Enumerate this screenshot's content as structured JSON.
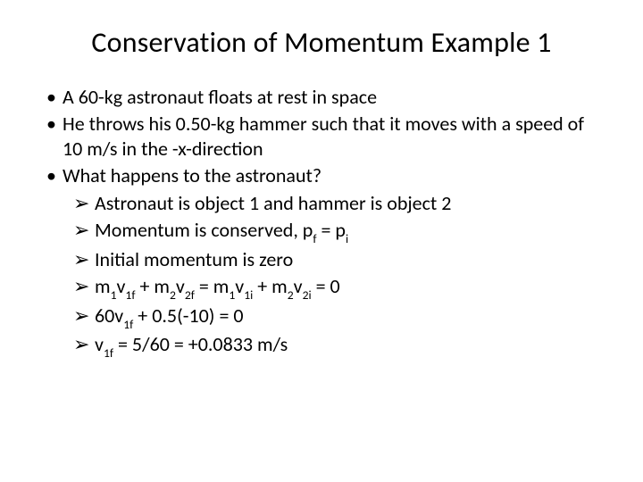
{
  "slide": {
    "title": "Conservation of Momentum Example 1",
    "title_fontsize": 32,
    "body_fontsize": 22,
    "text_color": "#000000",
    "background_color": "#ffffff",
    "bullets": {
      "b1_marker": "•",
      "b2_marker": "➢",
      "item0": "A 60-kg astronaut floats at rest in space",
      "item1": "He throws his 0.50-kg hammer such that it moves with a speed of 10 m/s in the -x-direction",
      "item2": "What happens to the astronaut?",
      "sub0": "Astronaut is object 1 and hammer is object 2",
      "sub1_pre": "Momentum is conserved, p",
      "sub1_s1": "f",
      "sub1_mid": " = p",
      "sub1_s2": "i",
      "sub2": "Initial momentum is zero",
      "sub3_a": "m",
      "sub3_s1": "1",
      "sub3_b": "v",
      "sub3_s2": "1f",
      "sub3_c": " + m",
      "sub3_s3": "2",
      "sub3_d": "v",
      "sub3_s4": "2f",
      "sub3_e": " = m",
      "sub3_s5": "1",
      "sub3_f": "v",
      "sub3_s6": "1i",
      "sub3_g": " + m",
      "sub3_s7": "2",
      "sub3_h": "v",
      "sub3_s8": "2i",
      "sub3_i": " = 0",
      "sub4_a": "60v",
      "sub4_s1": "1f",
      "sub4_b": " + 0.5(-10) = 0",
      "sub5_a": "v",
      "sub5_s1": "1f",
      "sub5_b": " = 5/60 = +0.0833 m/s"
    }
  }
}
